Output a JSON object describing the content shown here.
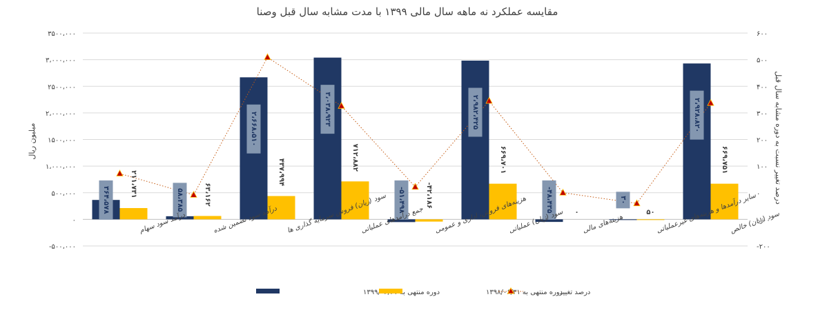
{
  "chart_data": {
    "type": "bar",
    "title": "مقایسه عملکرد نه ماهه سال مالی ۱۳۹۹ با مدت مشابه سال قبل وصنا",
    "ylabel": "میلیون ریال",
    "y2label": "درصد تغییر نسبت به دوره مشابه سال قبل",
    "ylim": [
      -500000,
      3500000
    ],
    "y2lim": [
      -200,
      600
    ],
    "y_ticks": [
      {
        "v": 3500000,
        "t": "۳۵۰۰،۰۰۰"
      },
      {
        "v": 3000000,
        "t": "۳،۰۰۰،۰۰۰"
      },
      {
        "v": 2500000,
        "t": "۲۵۰۰،۰۰۰"
      },
      {
        "v": 2000000,
        "t": "۲،۰۰۰،۰۰۰"
      },
      {
        "v": 1500000,
        "t": "۱۵۰۰،۰۰۰"
      },
      {
        "v": 1000000,
        "t": "۱،۰۰۰،۰۰۰"
      },
      {
        "v": 500000,
        "t": "۵۰۰،۰۰۰"
      },
      {
        "v": 0,
        "t": "۰"
      },
      {
        "v": -500000,
        "t": "-۵۰۰،۰۰۰"
      }
    ],
    "y2_ticks": [
      {
        "v": 600,
        "t": "۶۰۰"
      },
      {
        "v": 500,
        "t": "۵۰۰"
      },
      {
        "v": 400,
        "t": "۴۰۰"
      },
      {
        "v": 300,
        "t": "۳۰۰"
      },
      {
        "v": 200,
        "t": "۲۰۰"
      },
      {
        "v": 100,
        "t": "۱۰۰"
      },
      {
        "v": 0,
        "t": "۰"
      },
      {
        "v": -100,
        "t": "-۱۰۰"
      },
      {
        "v": -200,
        "t": "-۲۰۰"
      }
    ],
    "grid": true,
    "legend_position": "bottom",
    "categories": [
      "درآمد سود سهام",
      "درآمد سود تضمین شده",
      "سود (زیان) فروش سرمایه گذاری ها",
      "جمع درآمدهای عملیاتی",
      "هزینه‌های فروش، اداری و عمومی",
      "سود (زیان) عملیاتی",
      "هزینه‌های مالی",
      "سایر درآمدها و هزینه‌های غیرعملیاتی",
      "سود (زیان) خالص"
    ],
    "series": [
      {
        "name": "دوره منتهی به ۱۳۹۹/۰۶/۳۱",
        "type": "bar",
        "color": "#203864",
        "values": [
          364578,
          58385,
          2668510,
          3038923,
          -51498,
          2982425,
          -48435,
          30,
          2928820
        ],
        "labels": [
          "۳۶۴،۵۷۸",
          "۵۸،۳۸۵",
          "۲،۶۶۸،۵۱۰",
          "۳،۰۳۸،۹۲۳",
          "-۵۱،۴۹۸",
          "۲،۹۸۲،۴۲۵",
          "-۴۸،۴۳۵",
          "۳۰",
          "۲،۹۲۸،۸۲۰"
        ]
      },
      {
        "name": "دوره منتهی به ۱۳۹۸/۰۶/۳۱",
        "type": "bar",
        "color": "#FFC000",
        "values": [
          211731,
          63162,
          437994,
          712882,
          -42186,
          669701,
          0,
          50,
          669751
        ],
        "labels": [
          "۲۱۱،۷۳۱",
          "۶۳،۱۶۲",
          "۴۳۷،۹۹۴",
          "۷۱۲،۸۸۲",
          "-۴۲،۱۸۶",
          "۶۶۹،۷۰۱",
          "۰",
          "۵۰",
          "۶۶۹،۷۵۱"
        ]
      },
      {
        "name": "درصد تغییر",
        "type": "line",
        "axis": "right",
        "color": "#C00000",
        "values": [
          72,
          -8,
          509,
          326,
          22,
          345,
          0,
          -40,
          337
        ]
      }
    ]
  }
}
